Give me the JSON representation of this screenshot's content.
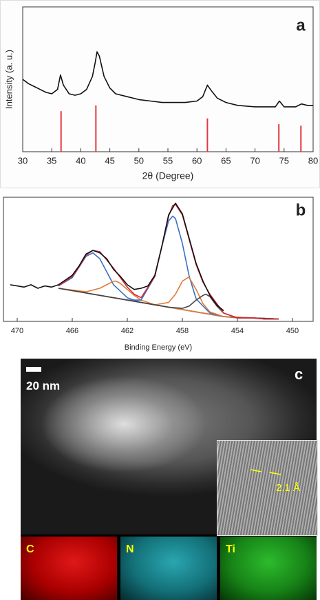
{
  "chart_data": [
    {
      "type": "line",
      "panel_label": "a",
      "x_label": "2θ (Degree)",
      "y_label": "Intensity (a. u.)",
      "xlim": [
        30,
        80
      ],
      "xticks": [
        30,
        35,
        40,
        45,
        50,
        55,
        60,
        65,
        70,
        75,
        80
      ],
      "ylim": [
        0,
        100
      ],
      "series": [
        {
          "type": "line",
          "color": "#111111",
          "x": [
            30,
            31,
            32,
            33,
            34,
            35,
            36,
            36.5,
            37,
            38,
            39,
            40,
            41,
            42,
            42.5,
            42.8,
            43.2,
            44,
            45,
            46,
            48,
            50,
            52,
            54,
            56,
            58,
            60,
            61,
            61.8,
            62.5,
            63.5,
            65,
            67,
            70,
            72,
            73.5,
            74.2,
            75,
            76,
            77,
            78,
            79,
            80
          ],
          "values": [
            50,
            47,
            45,
            43,
            41,
            40,
            43,
            53,
            46,
            40,
            39,
            40,
            43,
            52,
            62,
            69,
            66,
            52,
            44,
            40,
            38,
            36,
            35,
            34,
            34,
            34,
            35,
            38,
            46,
            42,
            37,
            34,
            32,
            31,
            31,
            31,
            35,
            31,
            31,
            31,
            33,
            32,
            32
          ]
        },
        {
          "type": "stem",
          "color": "#e0383e",
          "x": [
            36.6,
            42.6,
            61.8,
            74.1,
            77.9
          ],
          "values": [
            28,
            32,
            23,
            19,
            18
          ]
        }
      ]
    },
    {
      "type": "line",
      "panel_label": "b",
      "x_label": "Binding Energy (eV)",
      "xlim": [
        471,
        448.5
      ],
      "xticks": [
        470,
        466,
        462,
        458,
        454,
        450
      ],
      "ylim": [
        0,
        105
      ],
      "series": [
        {
          "type": "line",
          "color": "#8b5a3c",
          "x": [
            467,
            455,
            454,
            453,
            452,
            451
          ],
          "values": [
            28,
            4,
            3,
            3,
            2,
            2
          ]
        },
        {
          "type": "line",
          "color": "#3a6fc4",
          "x": [
            467,
            466,
            465.5,
            465,
            464.5,
            464,
            463.5,
            463,
            462,
            461,
            459,
            457,
            455,
            453,
            451
          ],
          "values": [
            30,
            37,
            46,
            55,
            58,
            53,
            42,
            31,
            20,
            16,
            12,
            8,
            4,
            3,
            2
          ]
        },
        {
          "type": "line",
          "color": "#e07b39",
          "x": [
            467,
            465,
            464,
            463.5,
            463,
            462.8,
            462.5,
            462,
            461.5,
            461,
            460,
            458,
            455,
            451
          ],
          "values": [
            28,
            25,
            28,
            31,
            34,
            34,
            32,
            27,
            22,
            18,
            14,
            10,
            4,
            2
          ]
        },
        {
          "type": "line",
          "color": "#3a6fc4",
          "x": [
            467,
            462,
            461,
            460,
            459.5,
            459,
            458.7,
            458.5,
            458,
            457.5,
            457,
            456,
            455,
            453,
            451
          ],
          "values": [
            28,
            18,
            18,
            38,
            63,
            85,
            89,
            87,
            66,
            38,
            19,
            7,
            4,
            3,
            2
          ]
        },
        {
          "type": "line",
          "color": "#e07b39",
          "x": [
            467,
            460,
            459,
            458.5,
            458,
            457.6,
            457.5,
            457,
            456.5,
            456,
            455,
            453,
            451
          ],
          "values": [
            28,
            14,
            16,
            23,
            34,
            37,
            37,
            27,
            15,
            8,
            4,
            3,
            2
          ]
        },
        {
          "type": "line",
          "color": "#444444",
          "x": [
            467,
            459,
            458,
            457.5,
            457,
            456.5,
            456.3,
            456,
            455.5,
            455,
            454,
            453,
            451
          ],
          "values": [
            28,
            12,
            11,
            13,
            18,
            22,
            23,
            21,
            13,
            7,
            3,
            3,
            2
          ]
        },
        {
          "type": "line",
          "color": "#d6283a",
          "x": [
            467,
            466,
            465.5,
            465,
            464.5,
            464,
            463.5,
            463,
            462.5,
            462,
            461.5,
            461,
            460,
            459.5,
            459,
            458.7,
            458.5,
            458,
            457.5,
            457,
            456.5,
            456,
            455,
            454,
            453,
            452,
            451
          ],
          "values": [
            30,
            38,
            46,
            56,
            60,
            59,
            52,
            45,
            37,
            29,
            23,
            20,
            38,
            63,
            89,
            98,
            99,
            90,
            69,
            48,
            33,
            23,
            7,
            3,
            3,
            2,
            2
          ]
        },
        {
          "type": "line",
          "color": "#111111",
          "x": [
            470.5,
            470,
            469.5,
            469,
            468.5,
            468,
            467.5,
            467,
            466,
            465.5,
            465,
            464.5,
            464,
            463.5,
            463,
            462.5,
            462,
            461.5,
            461,
            460.5,
            460,
            459.5,
            459,
            458.5,
            458,
            457.5,
            457,
            456.5,
            456,
            455.5,
            455
          ],
          "values": [
            31,
            30,
            29,
            31,
            28,
            30,
            29,
            31,
            39,
            47,
            57,
            60,
            58,
            53,
            44,
            38,
            31,
            27,
            28,
            30,
            39,
            63,
            90,
            100,
            91,
            70,
            49,
            34,
            22,
            14,
            9
          ]
        }
      ]
    }
  ],
  "image_panel": {
    "label": "c",
    "scale_bar": "20 nm",
    "inset_label": "2.1 Å",
    "maps": [
      "C",
      "N",
      "Ti"
    ]
  }
}
